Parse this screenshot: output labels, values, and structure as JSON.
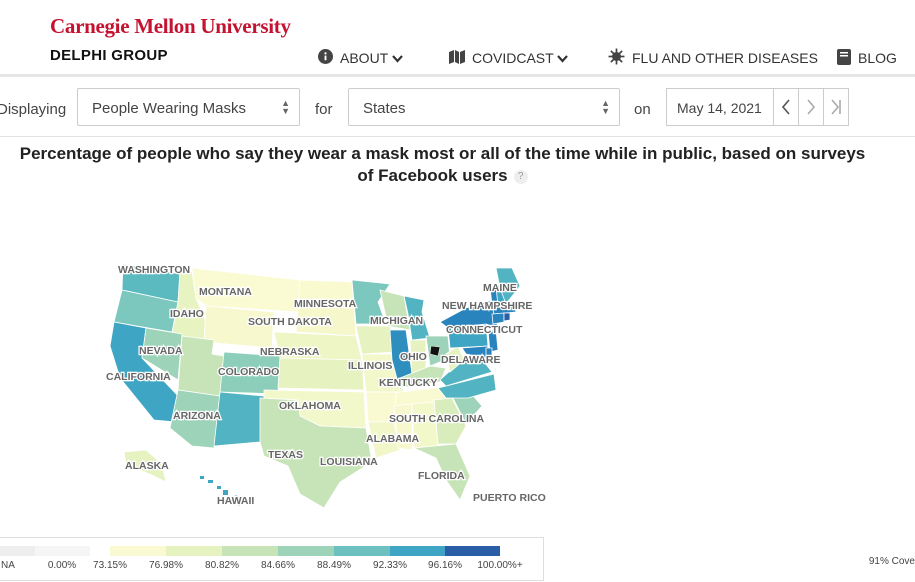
{
  "header": {
    "university": "Carnegie Mellon University",
    "group": "DELPHI GROUP",
    "nav": [
      {
        "label": "ABOUT",
        "icon": "info-circle-icon"
      },
      {
        "label": "COVIDCAST",
        "icon": "map-icon"
      },
      {
        "label": "FLU AND OTHER DISEASES",
        "icon": "virus-icon"
      },
      {
        "label": "BLOG",
        "icon": "book-icon"
      }
    ]
  },
  "controls": {
    "displaying_label": "Displaying",
    "signal": "People Wearing Masks",
    "for_label": "for",
    "region": "States",
    "on_label": "on",
    "date": "May 14, 2021"
  },
  "title": "Percentage of people who say they wear a mask most or all of the time while in public, based on surveys of Facebook users",
  "map_labels": {
    "washington": "WASHINGTON",
    "montana": "MONTANA",
    "idaho": "IDAHO",
    "minnesota": "MINNESOTA",
    "south_dakota": "SOUTH DAKOTA",
    "michigan": "MICHIGAN",
    "maine": "MAINE",
    "new_hampshire": "NEW HAMPSHIRE",
    "connecticut": "CONNECTICUT",
    "nevada": "NEVADA",
    "nebraska": "NEBRASKA",
    "illinois": "ILLINOIS",
    "ohio": "OHIO",
    "delaware": "DELAWARE",
    "california": "CALIFORNIA",
    "colorado": "COLORADO",
    "kentucky": "KENTUCKY",
    "oklahoma": "OKLAHOMA",
    "south_carolina": "SOUTH CAROLINA",
    "arizona": "ARIZONA",
    "alabama": "ALABAMA",
    "texas": "TEXAS",
    "louisiana": "LOUISIANA",
    "alaska": "ALASKA",
    "florida": "FLORIDA",
    "hawaii": "HAWAII",
    "puerto_rico": "PUERTO RICO"
  },
  "legend": {
    "ticks": [
      "NA",
      "0.00%",
      "73.15%",
      "76.98%",
      "80.82%",
      "84.66%",
      "88.49%",
      "92.33%",
      "96.16%",
      "100.00%+"
    ],
    "colors": [
      "#eeeeee",
      "#fafad2",
      "#e6f2c0",
      "#c6e4b7",
      "#9dd3b8",
      "#6cc0c0",
      "#3ea6c4",
      "#2983bd",
      "#2a5ea6"
    ]
  },
  "coverage": "91% Cove"
}
